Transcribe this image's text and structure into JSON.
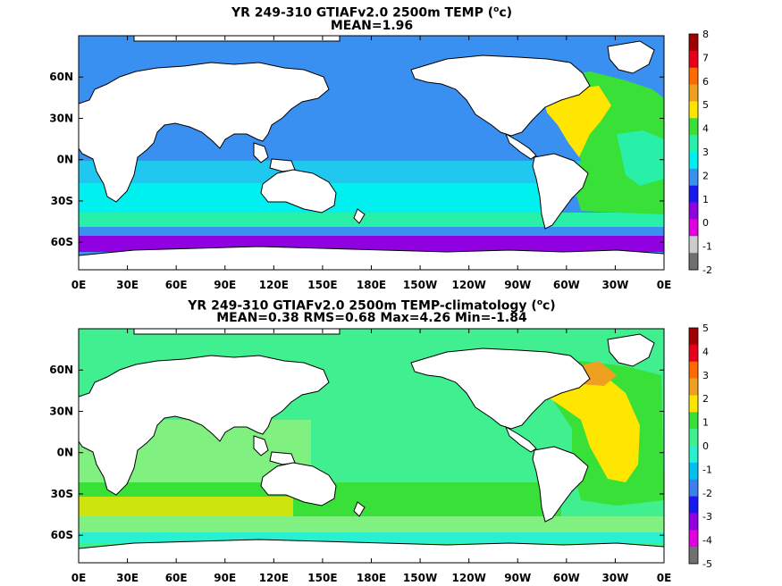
{
  "panels": [
    {
      "title_pre": "YR 249-310 GTIAFv2.0 2500m TEMP (",
      "title_sup": "o",
      "title_post": "c)",
      "subtitle": "MEAN=1.96",
      "lat_ticks": [
        "60N",
        "30N",
        "0N",
        "30S",
        "60S"
      ],
      "lon_ticks": [
        "0E",
        "30E",
        "60E",
        "90E",
        "120E",
        "150E",
        "180E",
        "150W",
        "120W",
        "90W",
        "60W",
        "30W",
        "0E"
      ],
      "colorbar_labels": [
        "8",
        "7",
        "6",
        "5",
        "4",
        "3",
        "2",
        "1",
        "0",
        "-1",
        "-2"
      ],
      "colorbar_colors": [
        "#a00000",
        "#e8001a",
        "#ff6a00",
        "#f0a020",
        "#ffe600",
        "#38e038",
        "#28f0a8",
        "#00f0f0",
        "#3a90f0",
        "#1818f0",
        "#9000e0",
        "#e000e0",
        "#cccccc",
        "#707070"
      ]
    },
    {
      "title_pre": "YR 249-310 GTIAFv2.0 2500m TEMP-climatology (",
      "title_sup": "o",
      "title_post": "c)",
      "subtitle": "MEAN=0.38   RMS=0.68   Max=4.26   Min=-1.84",
      "lat_ticks": [
        "60N",
        "30N",
        "0N",
        "30S",
        "60S"
      ],
      "lon_ticks": [
        "0E",
        "30E",
        "60E",
        "90E",
        "120E",
        "150E",
        "180E",
        "150W",
        "120W",
        "90W",
        "60W",
        "30W",
        "0E"
      ],
      "colorbar_labels": [
        "5",
        "4",
        "3",
        "2",
        "1",
        "0",
        "-1",
        "-2",
        "-3",
        "-4",
        "-5"
      ],
      "colorbar_colors": [
        "#a00000",
        "#e8001a",
        "#ff6a00",
        "#f0a020",
        "#ffe600",
        "#38e038",
        "#40f090",
        "#28f0d0",
        "#00c0f0",
        "#3a80f0",
        "#1818f0",
        "#9000e0",
        "#e000e0",
        "#707070"
      ]
    }
  ]
}
